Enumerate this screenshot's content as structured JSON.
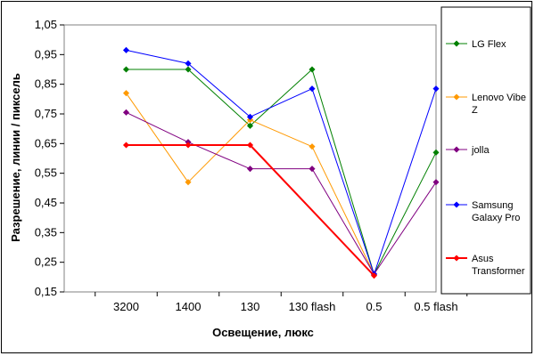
{
  "chart_data": {
    "type": "line",
    "categories": [
      "3200",
      "1400",
      "130",
      "130 flash",
      "0.5",
      "0.5 flash"
    ],
    "xlabel": "Освещение, люкс",
    "ylabel": "Разрешение, линии / пиксель",
    "ylim": [
      0.15,
      1.05
    ],
    "yticks": [
      "0,15",
      "0,25",
      "0,35",
      "0,45",
      "0,55",
      "0,65",
      "0,75",
      "0,85",
      "0,95",
      "1,05"
    ],
    "grid": false,
    "legend_position": "right",
    "series": [
      {
        "name": "LG Flex",
        "color": "#008000",
        "values": [
          0.9,
          0.9,
          0.71,
          0.9,
          0.21,
          0.62
        ]
      },
      {
        "name": "Lenovo Vibe Z",
        "color": "#FF9900",
        "values": [
          0.82,
          0.52,
          0.73,
          0.64,
          0.21,
          null
        ]
      },
      {
        "name": "jolla",
        "color": "#800080",
        "values": [
          0.755,
          0.655,
          0.565,
          0.565,
          0.21,
          0.52
        ]
      },
      {
        "name": "Samsung Galaxy Pro",
        "color": "#0000FF",
        "values": [
          0.965,
          0.92,
          0.74,
          0.835,
          0.21,
          0.835
        ]
      },
      {
        "name": "Asus Transformer",
        "color": "#FF0000",
        "values": [
          0.645,
          0.645,
          0.645,
          null,
          0.205,
          null
        ]
      }
    ],
    "legend_lines": [
      [
        "LG Flex"
      ],
      [
        "Lenovo Vibe",
        "Z"
      ],
      [
        "jolla"
      ],
      [
        "Samsung",
        "Galaxy Pro"
      ],
      [
        "Asus",
        "Transformer"
      ]
    ]
  }
}
